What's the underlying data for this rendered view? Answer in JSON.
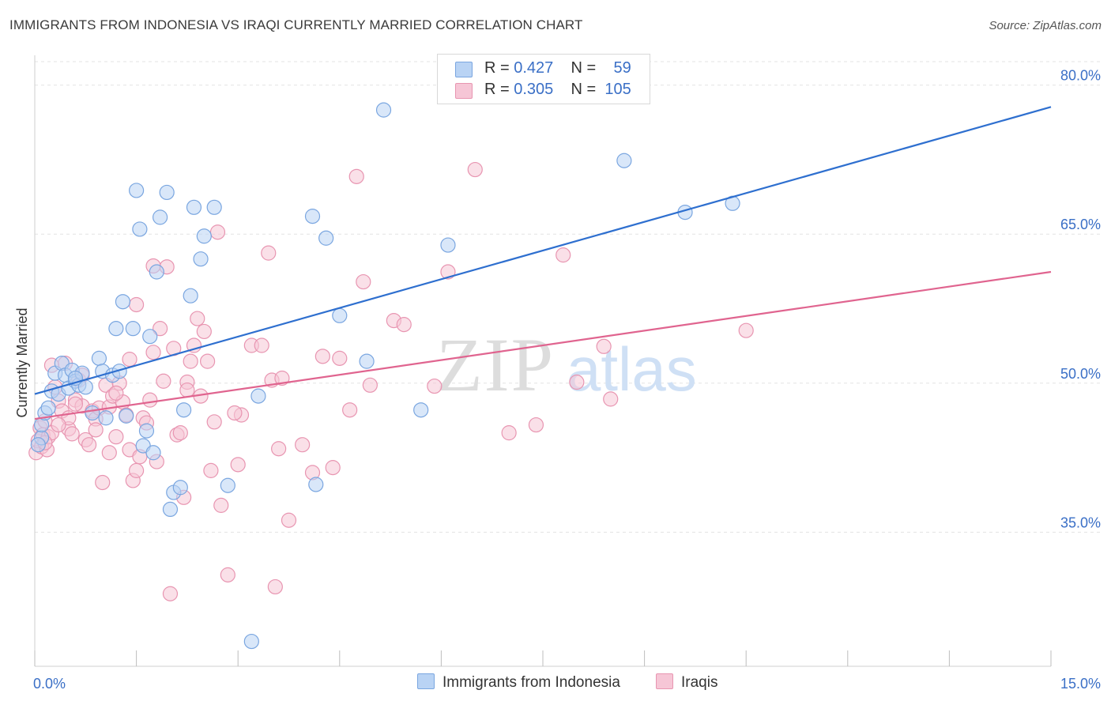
{
  "title": "IMMIGRANTS FROM INDONESIA VS IRAQI CURRENTLY MARRIED CORRELATION CHART",
  "source": "Source: ZipAtlas.com",
  "watermark": {
    "zip": "ZIP",
    "atlas": "atlas"
  },
  "legend_top": {
    "rows": [
      {
        "r_label": "R =",
        "r_value": "0.427",
        "n_label": "N =",
        "n_value": "59"
      },
      {
        "r_label": "R =",
        "r_value": "0.305",
        "n_label": "N =",
        "n_value": "105"
      }
    ]
  },
  "colors": {
    "indonesia_fill": "#b9d3f4",
    "indonesia_stroke": "#7aa6e0",
    "indonesia_line": "#2e6fcf",
    "iraqi_fill": "#f6c6d6",
    "iraqi_stroke": "#e895b1",
    "iraqi_line": "#e0648f",
    "axis_label": "#3a6fc6",
    "grid": "#e3e3e3"
  },
  "chart_data": {
    "type": "scatter",
    "title": "IMMIGRANTS FROM INDONESIA VS IRAQI CURRENTLY MARRIED CORRELATION CHART",
    "xlabel": "",
    "ylabel": "Currently Married",
    "xlim": [
      0,
      15
    ],
    "ylim": [
      21.5,
      83
    ],
    "x_tick_labels": [
      "0.0%",
      "15.0%"
    ],
    "y_ticks": [
      35,
      50,
      65,
      80
    ],
    "y_tick_labels": [
      "35.0%",
      "50.0%",
      "65.0%",
      "80.0%"
    ],
    "legend_position": "top-center",
    "series": [
      {
        "name": "Immigrants from Indonesia",
        "R": 0.427,
        "N": 59,
        "trend": {
          "x": [
            0,
            15
          ],
          "y": [
            48.9,
            77.8
          ]
        },
        "points": [
          [
            0.1,
            44.5
          ],
          [
            0.1,
            45.8
          ],
          [
            0.15,
            47.0
          ],
          [
            0.2,
            47.5
          ],
          [
            0.25,
            49.2
          ],
          [
            0.3,
            51.0
          ],
          [
            0.35,
            48.9
          ],
          [
            0.4,
            52.0
          ],
          [
            0.45,
            50.8
          ],
          [
            0.5,
            49.5
          ],
          [
            0.55,
            51.3
          ],
          [
            0.6,
            50.2
          ],
          [
            0.65,
            49.8
          ],
          [
            0.7,
            51.0
          ],
          [
            0.75,
            49.6
          ],
          [
            0.85,
            47.0
          ],
          [
            0.95,
            52.5
          ],
          [
            1.0,
            51.2
          ],
          [
            1.05,
            46.5
          ],
          [
            1.15,
            50.8
          ],
          [
            1.2,
            55.5
          ],
          [
            1.25,
            51.2
          ],
          [
            1.3,
            58.2
          ],
          [
            1.35,
            46.7
          ],
          [
            1.45,
            55.5
          ],
          [
            1.5,
            69.4
          ],
          [
            1.55,
            65.5
          ],
          [
            1.6,
            43.7
          ],
          [
            1.65,
            45.2
          ],
          [
            1.7,
            54.7
          ],
          [
            1.75,
            43.0
          ],
          [
            1.8,
            61.2
          ],
          [
            1.85,
            66.7
          ],
          [
            1.95,
            69.2
          ],
          [
            2.0,
            37.3
          ],
          [
            2.05,
            39.0
          ],
          [
            2.15,
            39.5
          ],
          [
            2.2,
            47.3
          ],
          [
            2.3,
            58.8
          ],
          [
            2.35,
            67.7
          ],
          [
            2.45,
            62.5
          ],
          [
            2.5,
            64.8
          ],
          [
            2.65,
            67.7
          ],
          [
            2.85,
            39.7
          ],
          [
            3.2,
            24.0
          ],
          [
            3.3,
            48.7
          ],
          [
            4.1,
            66.8
          ],
          [
            4.15,
            39.8
          ],
          [
            4.3,
            64.6
          ],
          [
            4.5,
            56.8
          ],
          [
            4.9,
            52.2
          ],
          [
            5.15,
            77.5
          ],
          [
            5.7,
            47.3
          ],
          [
            6.1,
            63.9
          ],
          [
            8.7,
            72.4
          ],
          [
            9.6,
            67.2
          ],
          [
            10.3,
            68.1
          ],
          [
            0.05,
            43.8
          ],
          [
            0.6,
            50.5
          ]
        ]
      },
      {
        "name": "Iraqis",
        "R": 0.305,
        "N": 105,
        "trend": {
          "x": [
            0,
            15
          ],
          "y": [
            46.4,
            61.2
          ]
        },
        "points": [
          [
            0.02,
            43.0
          ],
          [
            0.05,
            44.2
          ],
          [
            0.08,
            45.5
          ],
          [
            0.1,
            43.6
          ],
          [
            0.12,
            44.8
          ],
          [
            0.15,
            46.2
          ],
          [
            0.18,
            43.3
          ],
          [
            0.2,
            44.6
          ],
          [
            0.25,
            45.0
          ],
          [
            0.3,
            49.6
          ],
          [
            0.35,
            48.2
          ],
          [
            0.4,
            47.2
          ],
          [
            0.45,
            52.0
          ],
          [
            0.5,
            45.4
          ],
          [
            0.55,
            44.9
          ],
          [
            0.6,
            48.3
          ],
          [
            0.65,
            50.3
          ],
          [
            0.7,
            47.7
          ],
          [
            0.75,
            44.3
          ],
          [
            0.8,
            43.8
          ],
          [
            0.85,
            47.2
          ],
          [
            0.9,
            46.4
          ],
          [
            0.95,
            47.5
          ],
          [
            1.0,
            40.0
          ],
          [
            1.05,
            49.8
          ],
          [
            1.1,
            47.6
          ],
          [
            1.15,
            48.7
          ],
          [
            1.2,
            44.6
          ],
          [
            1.25,
            50.0
          ],
          [
            1.3,
            48.1
          ],
          [
            1.35,
            46.8
          ],
          [
            1.4,
            43.3
          ],
          [
            1.45,
            40.2
          ],
          [
            1.5,
            41.2
          ],
          [
            1.55,
            42.6
          ],
          [
            1.6,
            46.5
          ],
          [
            1.65,
            46.0
          ],
          [
            1.7,
            48.3
          ],
          [
            1.75,
            53.1
          ],
          [
            1.8,
            42.1
          ],
          [
            1.85,
            55.5
          ],
          [
            1.9,
            50.2
          ],
          [
            1.95,
            61.7
          ],
          [
            2.0,
            28.8
          ],
          [
            2.05,
            53.5
          ],
          [
            2.1,
            44.8
          ],
          [
            2.15,
            45.0
          ],
          [
            2.2,
            38.5
          ],
          [
            2.25,
            50.1
          ],
          [
            2.3,
            52.2
          ],
          [
            2.35,
            53.8
          ],
          [
            2.4,
            56.5
          ],
          [
            2.45,
            48.7
          ],
          [
            2.5,
            55.2
          ],
          [
            2.55,
            52.2
          ],
          [
            2.6,
            41.2
          ],
          [
            2.65,
            46.1
          ],
          [
            2.7,
            65.2
          ],
          [
            2.75,
            37.7
          ],
          [
            2.85,
            30.7
          ],
          [
            3.0,
            41.8
          ],
          [
            3.05,
            46.8
          ],
          [
            3.2,
            53.8
          ],
          [
            3.35,
            53.8
          ],
          [
            3.45,
            63.1
          ],
          [
            3.5,
            50.3
          ],
          [
            3.55,
            29.5
          ],
          [
            3.6,
            43.4
          ],
          [
            3.65,
            50.5
          ],
          [
            3.75,
            36.2
          ],
          [
            3.95,
            43.8
          ],
          [
            4.1,
            41.0
          ],
          [
            4.25,
            52.7
          ],
          [
            4.4,
            41.5
          ],
          [
            4.5,
            52.5
          ],
          [
            4.65,
            47.3
          ],
          [
            4.75,
            70.8
          ],
          [
            4.85,
            60.2
          ],
          [
            4.95,
            49.8
          ],
          [
            5.3,
            56.3
          ],
          [
            5.45,
            55.9
          ],
          [
            5.9,
            49.7
          ],
          [
            6.1,
            61.2
          ],
          [
            6.5,
            71.5
          ],
          [
            7.0,
            45.0
          ],
          [
            7.4,
            45.8
          ],
          [
            7.8,
            62.9
          ],
          [
            8.0,
            50.1
          ],
          [
            8.4,
            53.7
          ],
          [
            8.5,
            48.4
          ],
          [
            10.5,
            55.3
          ],
          [
            0.25,
            51.8
          ],
          [
            0.5,
            46.5
          ],
          [
            1.1,
            43.0
          ],
          [
            1.5,
            57.9
          ],
          [
            0.7,
            50.8
          ],
          [
            0.9,
            45.3
          ],
          [
            1.2,
            49.0
          ],
          [
            1.75,
            61.8
          ],
          [
            2.25,
            49.3
          ],
          [
            0.35,
            45.8
          ],
          [
            0.15,
            44.0
          ],
          [
            1.4,
            52.4
          ],
          [
            2.95,
            47.0
          ],
          [
            0.6,
            47.9
          ]
        ]
      }
    ]
  },
  "bottom_legend": [
    {
      "label": "Immigrants from Indonesia"
    },
    {
      "label": "Iraqis"
    }
  ]
}
